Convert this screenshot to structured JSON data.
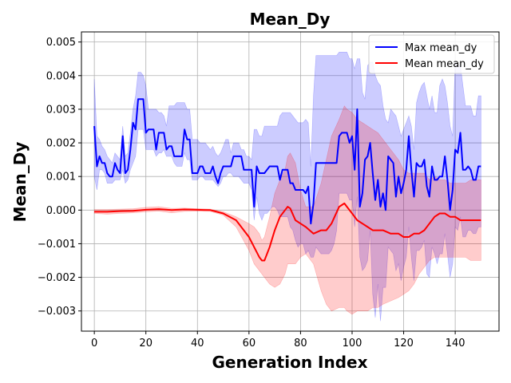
{
  "chart_data": {
    "type": "line",
    "title": "Mean_Dy",
    "xlabel": "Generation Index",
    "ylabel": "Mean_Dy",
    "xlim": [
      -5,
      157
    ],
    "ylim": [
      -0.0036,
      0.0053
    ],
    "xticks": [
      0,
      20,
      40,
      60,
      80,
      100,
      120,
      140
    ],
    "xtick_labels": [
      "0",
      "20",
      "40",
      "60",
      "80",
      "100",
      "120",
      "140"
    ],
    "yticks": [
      -0.003,
      -0.002,
      -0.001,
      0.0,
      0.001,
      0.002,
      0.003,
      0.004,
      0.005
    ],
    "ytick_labels": [
      "−0.003",
      "−0.002",
      "−0.001",
      "0.000",
      "0.001",
      "0.002",
      "0.003",
      "0.004",
      "0.005"
    ],
    "grid": true,
    "legend_position": "top-right",
    "colors": {
      "max": "#0000ff",
      "mean": "#ff0000",
      "max_band": "#0000ff",
      "mean_band": "#ff0000"
    },
    "series": [
      {
        "name": "Max mean_dy",
        "color": "#0000ff",
        "x": [
          0,
          1,
          2,
          3,
          4,
          5,
          6,
          7,
          8,
          9,
          10,
          11,
          12,
          13,
          14,
          15,
          16,
          17,
          18,
          19,
          20,
          21,
          22,
          23,
          24,
          25,
          26,
          27,
          28,
          29,
          30,
          31,
          32,
          33,
          34,
          35,
          36,
          37,
          38,
          39,
          40,
          41,
          42,
          43,
          44,
          45,
          46,
          47,
          48,
          49,
          50,
          51,
          52,
          53,
          54,
          55,
          56,
          57,
          58,
          59,
          60,
          61,
          62,
          63,
          64,
          65,
          66,
          67,
          68,
          69,
          70,
          71,
          72,
          73,
          74,
          75,
          76,
          77,
          78,
          79,
          80,
          81,
          82,
          83,
          84,
          85,
          86,
          87,
          88,
          89,
          90,
          91,
          92,
          93,
          94,
          95,
          96,
          97,
          98,
          99,
          100,
          101,
          102,
          103,
          104,
          105,
          106,
          107,
          108,
          109,
          110,
          111,
          112,
          113,
          114,
          115,
          116,
          117,
          118,
          119,
          120,
          121,
          122,
          123,
          124,
          125,
          126,
          127,
          128,
          129,
          130,
          131,
          132,
          133,
          134,
          135,
          136,
          137,
          138,
          139,
          140,
          141,
          142,
          143,
          144,
          145,
          146,
          147,
          148,
          149,
          150
        ],
        "values": [
          0.0025,
          0.0013,
          0.0016,
          0.0014,
          0.0014,
          0.0011,
          0.001,
          0.001,
          0.0014,
          0.0012,
          0.0011,
          0.0022,
          0.0011,
          0.0012,
          0.0018,
          0.0026,
          0.0024,
          0.0033,
          0.0033,
          0.0033,
          0.0023,
          0.0024,
          0.0024,
          0.0024,
          0.0018,
          0.0023,
          0.0023,
          0.0023,
          0.0018,
          0.0019,
          0.0019,
          0.0016,
          0.0016,
          0.0016,
          0.0016,
          0.0024,
          0.0021,
          0.0021,
          0.0011,
          0.0011,
          0.0011,
          0.0013,
          0.0013,
          0.0011,
          0.0011,
          0.0011,
          0.0013,
          0.001,
          0.0008,
          0.0011,
          0.0013,
          0.0013,
          0.0013,
          0.0013,
          0.0016,
          0.0016,
          0.0016,
          0.0016,
          0.0012,
          0.0012,
          0.0012,
          0.0012,
          0.0001,
          0.0013,
          0.0011,
          0.0011,
          0.0011,
          0.0012,
          0.0013,
          0.0013,
          0.0013,
          0.0013,
          0.0009,
          0.0012,
          0.0012,
          0.0012,
          0.0008,
          0.0008,
          0.0006,
          0.0006,
          0.0006,
          0.0006,
          0.0005,
          0.0007,
          -0.0004,
          0.0002,
          0.0014,
          0.0014,
          0.0014,
          0.0014,
          0.0014,
          0.0014,
          0.0014,
          0.0014,
          0.0014,
          0.0022,
          0.0023,
          0.0023,
          0.0023,
          0.002,
          0.0022,
          0.0012,
          0.003,
          0.0001,
          0.0005,
          0.0015,
          0.0016,
          0.002,
          0.0011,
          0.0003,
          0.0009,
          0.0001,
          0.0005,
          0.0,
          0.0016,
          0.0015,
          0.0014,
          0.0004,
          0.001,
          0.0005,
          0.0008,
          0.0012,
          0.0022,
          0.0012,
          0.0004,
          0.0014,
          0.0013,
          0.0013,
          0.0015,
          0.0007,
          0.0004,
          0.0013,
          0.0009,
          0.0009,
          0.001,
          0.001,
          0.0016,
          0.0009,
          0.0,
          0.0006,
          0.0018,
          0.0017,
          0.0023,
          0.0012,
          0.0012,
          0.0013,
          0.0012,
          0.0009,
          0.0009,
          0.0013,
          0.0013
        ],
        "band_upper": [
          0.0039,
          0.0022,
          0.0021,
          0.0019,
          0.0018,
          0.0016,
          0.0015,
          0.0014,
          0.0017,
          0.0016,
          0.0015,
          0.0025,
          0.0016,
          0.0017,
          0.0023,
          0.003,
          0.0034,
          0.0041,
          0.0041,
          0.004,
          0.0037,
          0.003,
          0.003,
          0.003,
          0.003,
          0.0029,
          0.0029,
          0.0028,
          0.0025,
          0.0031,
          0.0031,
          0.0031,
          0.0032,
          0.0032,
          0.0032,
          0.0032,
          0.003,
          0.003,
          0.0021,
          0.0021,
          0.0021,
          0.002,
          0.002,
          0.002,
          0.0019,
          0.0018,
          0.0019,
          0.0017,
          0.0016,
          0.0017,
          0.0019,
          0.0021,
          0.0021,
          0.0017,
          0.002,
          0.002,
          0.002,
          0.0018,
          0.0018,
          0.0016,
          0.0016,
          0.0015,
          0.0024,
          0.0024,
          0.0022,
          0.0022,
          0.0025,
          0.0025,
          0.0025,
          0.0025,
          0.0025,
          0.0025,
          0.0028,
          0.0029,
          0.0029,
          0.0029,
          0.0029,
          0.0028,
          0.0027,
          0.0026,
          0.0026,
          0.0026,
          0.0027,
          0.0026,
          0.0013,
          0.0034,
          0.0046,
          0.0046,
          0.0046,
          0.0046,
          0.0046,
          0.0046,
          0.0046,
          0.0046,
          0.0046,
          0.0047,
          0.0047,
          0.0047,
          0.0047,
          0.0045,
          0.0045,
          0.0042,
          0.0045,
          0.0045,
          0.0035,
          0.0033,
          0.0043,
          0.0044,
          0.0044,
          0.004,
          0.0038,
          0.0037,
          0.0031,
          0.0027,
          0.0026,
          0.003,
          0.0029,
          0.0028,
          0.0025,
          0.0022,
          0.0024,
          0.0026,
          0.0028,
          0.0025,
          0.0018,
          0.0032,
          0.0035,
          0.0037,
          0.0038,
          0.0034,
          0.003,
          0.0034,
          0.0029,
          0.0029,
          0.0037,
          0.0039,
          0.0037,
          0.0032,
          0.0025,
          0.0022,
          0.0044,
          0.0043,
          0.0043,
          0.0037,
          0.0031,
          0.0031,
          0.0031,
          0.0028,
          0.0028,
          0.0034,
          0.0034
        ],
        "band_lower": [
          0.001,
          0.0006,
          0.0012,
          0.0012,
          0.0011,
          0.0008,
          0.0008,
          0.0008,
          0.0009,
          0.0009,
          0.0009,
          0.0012,
          0.0008,
          0.0009,
          0.0012,
          0.0014,
          0.0016,
          0.0024,
          0.0024,
          0.0024,
          0.0018,
          0.0018,
          0.0018,
          0.0018,
          0.0016,
          0.0017,
          0.0017,
          0.0018,
          0.0016,
          0.0016,
          0.0016,
          0.0014,
          0.0013,
          0.0013,
          0.0013,
          0.0017,
          0.0015,
          0.0015,
          0.0009,
          0.0009,
          0.0009,
          0.001,
          0.001,
          0.0009,
          0.0009,
          0.0009,
          0.0009,
          0.0008,
          0.0007,
          0.0008,
          0.001,
          0.001,
          0.0011,
          0.0011,
          0.001,
          0.001,
          0.001,
          0.0009,
          0.0008,
          0.0008,
          0.0008,
          0.0006,
          -0.0003,
          0.0004,
          -0.0001,
          -0.0003,
          -0.0001,
          -0.0001,
          0.0,
          0.0001,
          0.0001,
          0.0,
          -0.0002,
          -0.0002,
          -0.0002,
          -0.0002,
          -0.0005,
          -0.0006,
          -0.0009,
          -0.0011,
          -0.001,
          -0.001,
          -0.0013,
          -0.0012,
          -0.0014,
          -0.0014,
          -0.0011,
          -0.0012,
          -0.0013,
          -0.0013,
          -0.0013,
          -0.0013,
          -0.0012,
          -0.001,
          -0.0006,
          0.0005,
          0.0005,
          0.0005,
          0.0005,
          0.0003,
          0.0003,
          -0.0005,
          0.0004,
          -0.0014,
          -0.0018,
          -0.0017,
          -0.0015,
          -0.0006,
          -0.0025,
          -0.0032,
          -0.0022,
          -0.0033,
          -0.0023,
          -0.0023,
          -0.0011,
          -0.0012,
          -0.0013,
          -0.0018,
          -0.0016,
          -0.0021,
          -0.0017,
          -0.0014,
          -0.0005,
          -0.0014,
          -0.0021,
          -0.0012,
          -0.0012,
          -0.0011,
          -0.0009,
          -0.0019,
          -0.002,
          -0.0011,
          -0.0013,
          -0.0016,
          -0.0013,
          -0.0013,
          -0.0007,
          -0.0013,
          -0.002,
          -0.0016,
          -0.0005,
          -0.0006,
          -0.0002,
          -0.0008,
          -0.0008,
          -0.0006,
          -0.0006,
          -0.0007,
          -0.0007,
          -0.0005,
          -0.0005
        ]
      },
      {
        "name": "Mean mean_dy",
        "color": "#ff0000",
        "x": [
          0,
          5,
          10,
          15,
          20,
          25,
          30,
          35,
          40,
          45,
          50,
          55,
          60,
          62,
          64,
          65,
          66,
          68,
          70,
          72,
          74,
          75,
          76,
          78,
          80,
          82,
          85,
          88,
          90,
          92,
          95,
          97,
          98,
          100,
          102,
          104,
          106,
          108,
          110,
          112,
          115,
          118,
          120,
          122,
          124,
          126,
          128,
          130,
          132,
          134,
          136,
          138,
          140,
          142,
          144,
          146,
          148,
          150
        ],
        "values": [
          -5e-05,
          -5e-05,
          -3e-05,
          -2e-05,
          1e-05,
          3e-05,
          0.0,
          2e-05,
          1e-05,
          0.0,
          -0.0001,
          -0.0003,
          -0.0008,
          -0.0011,
          -0.0014,
          -0.0015,
          -0.0015,
          -0.0011,
          -0.0006,
          -0.0002,
          0.0,
          0.0001,
          5e-05,
          -0.0003,
          -0.0004,
          -0.0005,
          -0.0007,
          -0.0006,
          -0.0006,
          -0.0004,
          0.0001,
          0.0002,
          0.0001,
          -0.0001,
          -0.0003,
          -0.0004,
          -0.0005,
          -0.0006,
          -0.0006,
          -0.0006,
          -0.0007,
          -0.0007,
          -0.0008,
          -0.0008,
          -0.0007,
          -0.0007,
          -0.0006,
          -0.0004,
          -0.0002,
          -0.0001,
          -0.0001,
          -0.0002,
          -0.0002,
          -0.0003,
          -0.0003,
          -0.0003,
          -0.0003,
          -0.0003
        ],
        "band_upper": [
          2e-05,
          2e-05,
          3e-05,
          4e-05,
          8e-05,
          0.0001,
          5e-05,
          6e-05,
          4e-05,
          3e-05,
          -5e-05,
          -0.0002,
          -0.0004,
          -0.0005,
          -0.0007,
          -0.0009,
          -0.0008,
          -0.0002,
          0.0005,
          0.0009,
          0.0012,
          0.0016,
          0.0017,
          0.0014,
          0.0006,
          0.0001,
          0.0001,
          0.0008,
          0.0015,
          0.0022,
          0.0027,
          0.0031,
          0.003,
          0.0029,
          0.0027,
          0.0026,
          0.0025,
          0.0024,
          0.0023,
          0.0021,
          0.0018,
          0.0015,
          0.0012,
          0.0011,
          0.0011,
          0.0011,
          0.0011,
          0.0009,
          0.001,
          0.0009,
          0.0009,
          0.0008,
          0.0008,
          0.0008,
          0.0008,
          0.0009,
          0.0009,
          0.0009
        ],
        "band_lower": [
          -0.0001,
          -0.00012,
          -0.0001,
          -8e-05,
          -5e-05,
          -3e-05,
          -8e-05,
          -4e-05,
          -3e-05,
          -4e-05,
          -0.00015,
          -0.0005,
          -0.0012,
          -0.0016,
          -0.0018,
          -0.0019,
          -0.002,
          -0.0022,
          -0.0023,
          -0.0022,
          -0.0019,
          -0.0016,
          -0.0016,
          -0.0016,
          -0.0014,
          -0.0013,
          -0.0016,
          -0.0024,
          -0.0028,
          -0.003,
          -0.0029,
          -0.0029,
          -0.003,
          -0.0031,
          -0.003,
          -0.003,
          -0.003,
          -0.0029,
          -0.0029,
          -0.0028,
          -0.0027,
          -0.0026,
          -0.0025,
          -0.0024,
          -0.0022,
          -0.0019,
          -0.0017,
          -0.0015,
          -0.0014,
          -0.0014,
          -0.0014,
          -0.0014,
          -0.0014,
          -0.0014,
          -0.0014,
          -0.0015,
          -0.0015,
          -0.0015
        ]
      }
    ]
  }
}
